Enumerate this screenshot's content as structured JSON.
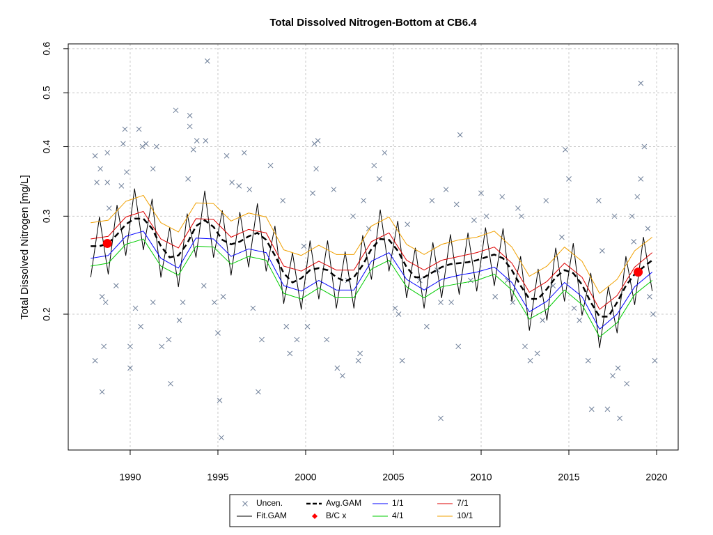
{
  "chart_data": {
    "type": "line",
    "title": "Total Dissolved Nitrogen-Bottom at CB6.4",
    "ylabel": "Total Dissolved Nitrogen [mg/L]",
    "ylog": true,
    "grid": true,
    "xlim": [
      1986.47,
      2021.23
    ],
    "ylim": [
      0.114,
      0.612
    ],
    "xticks": [
      1990,
      1995,
      2000,
      2005,
      2010,
      2015,
      2020
    ],
    "yticks": [
      0.2,
      0.3,
      0.4,
      0.5,
      0.6
    ],
    "legend": "bottom",
    "x": [
      1987.75,
      1988.25,
      1988.75,
      1989.25,
      1989.75,
      1990.25,
      1990.75,
      1991.25,
      1991.75,
      1992.25,
      1992.75,
      1993.25,
      1993.75,
      1994.25,
      1994.75,
      1995.25,
      1995.75,
      1996.25,
      1996.75,
      1997.25,
      1997.75,
      1998.25,
      1998.75,
      1999.25,
      1999.75,
      2000.25,
      2000.75,
      2001.25,
      2001.75,
      2002.25,
      2002.75,
      2003.25,
      2003.75,
      2004.25,
      2004.75,
      2005.25,
      2005.75,
      2006.25,
      2006.75,
      2007.25,
      2007.75,
      2008.25,
      2008.75,
      2009.25,
      2009.75,
      2010.25,
      2010.75,
      2011.25,
      2011.75,
      2012.25,
      2012.75,
      2013.25,
      2013.75,
      2014.25,
      2014.75,
      2015.25,
      2015.75,
      2016.25,
      2016.75,
      2017.25,
      2017.75,
      2018.25,
      2018.75,
      2019.25,
      2019.75
    ],
    "series": [
      {
        "name": "Uncen.",
        "marker": "x",
        "color": "#6e7f99",
        "x": [
          1988.0,
          1988.1,
          1988.0,
          1988.3,
          1988.4,
          1988.5,
          1988.4,
          1988.6,
          1988.7,
          1988.7,
          1988.8,
          1989.2,
          1989.5,
          1989.7,
          1989.6,
          1989.8,
          1990.0,
          1990.0,
          1990.3,
          1990.5,
          1990.6,
          1990.7,
          1990.9,
          1991.3,
          1991.3,
          1991.5,
          1991.8,
          1992.2,
          1992.3,
          1992.6,
          1992.8,
          1993.0,
          1993.3,
          1993.4,
          1993.4,
          1993.6,
          1993.8,
          1994.2,
          1994.3,
          1994.4,
          1994.8,
          1995.0,
          1995.1,
          1995.2,
          1995.3,
          1995.5,
          1995.8,
          1996.2,
          1996.5,
          1996.8,
          1997.0,
          1997.3,
          1997.5,
          1998.0,
          1998.7,
          1998.9,
          1999.1,
          1999.5,
          1999.9,
          2000.1,
          2000.4,
          2000.5,
          2000.6,
          2000.7,
          2001.2,
          2001.6,
          2001.8,
          2002.1,
          2002.4,
          2002.7,
          2003.0,
          2003.1,
          2003.3,
          2003.6,
          2003.9,
          2004.2,
          2004.5,
          2005.1,
          2005.3,
          2005.5,
          2005.8,
          2006.5,
          2006.9,
          2007.2,
          2007.5,
          2007.7,
          2007.7,
          2008.0,
          2008.3,
          2008.6,
          2008.8,
          2008.7,
          2009.4,
          2009.6,
          2010.0,
          2010.3,
          2010.8,
          2011.2,
          2011.5,
          2011.8,
          2012.1,
          2012.3,
          2012.5,
          2012.8,
          2013.2,
          2013.5,
          2013.7,
          2014.1,
          2014.6,
          2014.8,
          2015.0,
          2015.3,
          2015.6,
          2016.1,
          2016.3,
          2016.7,
          2016.9,
          2017.2,
          2017.5,
          2017.6,
          2017.8,
          2017.9,
          2018.3,
          2018.6,
          2018.7,
          2018.9,
          2019.1,
          2019.1,
          2019.3,
          2019.5,
          2019.6,
          2019.8,
          2019.9
        ],
        "values": [
          0.385,
          0.345,
          0.165,
          0.365,
          0.145,
          0.175,
          0.215,
          0.21,
          0.39,
          0.345,
          0.31,
          0.225,
          0.34,
          0.43,
          0.405,
          0.36,
          0.175,
          0.16,
          0.205,
          0.43,
          0.19,
          0.4,
          0.405,
          0.365,
          0.21,
          0.4,
          0.175,
          0.18,
          0.15,
          0.465,
          0.195,
          0.21,
          0.35,
          0.435,
          0.455,
          0.395,
          0.41,
          0.225,
          0.41,
          0.57,
          0.21,
          0.185,
          0.14,
          0.12,
          0.215,
          0.385,
          0.345,
          0.34,
          0.39,
          0.335,
          0.205,
          0.145,
          0.18,
          0.37,
          0.32,
          0.19,
          0.17,
          0.18,
          0.265,
          0.19,
          0.33,
          0.405,
          0.365,
          0.41,
          0.18,
          0.335,
          0.16,
          0.155,
          0.23,
          0.3,
          0.165,
          0.17,
          0.32,
          0.285,
          0.37,
          0.35,
          0.39,
          0.205,
          0.2,
          0.165,
          0.29,
          0.23,
          0.19,
          0.32,
          0.24,
          0.21,
          0.13,
          0.335,
          0.21,
          0.315,
          0.42,
          0.175,
          0.23,
          0.295,
          0.33,
          0.3,
          0.215,
          0.325,
          0.23,
          0.21,
          0.31,
          0.3,
          0.175,
          0.165,
          0.17,
          0.195,
          0.32,
          0.225,
          0.275,
          0.395,
          0.35,
          0.205,
          0.195,
          0.165,
          0.135,
          0.32,
          0.26,
          0.135,
          0.155,
          0.3,
          0.16,
          0.13,
          0.15,
          0.3,
          0.27,
          0.325,
          0.35,
          0.52,
          0.4,
          0.285,
          0.215,
          0.2,
          0.165
        ]
      },
      {
        "name": "Fit.GAM",
        "marker": "line",
        "color": "#000000",
        "values": [
          0.233,
          0.299,
          0.236,
          0.314,
          0.255,
          0.336,
          0.261,
          0.322,
          0.233,
          0.286,
          0.224,
          0.303,
          0.253,
          0.333,
          0.253,
          0.307,
          0.235,
          0.305,
          0.243,
          0.316,
          0.239,
          0.288,
          0.209,
          0.258,
          0.204,
          0.271,
          0.213,
          0.271,
          0.205,
          0.259,
          0.205,
          0.277,
          0.231,
          0.308,
          0.239,
          0.294,
          0.214,
          0.263,
          0.205,
          0.269,
          0.214,
          0.278,
          0.217,
          0.28,
          0.22,
          0.286,
          0.225,
          0.285,
          0.211,
          0.254,
          0.187,
          0.241,
          0.195,
          0.263,
          0.211,
          0.268,
          0.199,
          0.237,
          0.174,
          0.224,
          0.185,
          0.254,
          0.208,
          0.275,
          0.22
        ]
      },
      {
        "name": "Avg.GAM",
        "marker": "dash",
        "color": "#000000",
        "values": [
          0.265,
          0.265,
          0.268,
          0.278,
          0.29,
          0.297,
          0.297,
          0.285,
          0.265,
          0.253,
          0.255,
          0.268,
          0.288,
          0.295,
          0.287,
          0.272,
          0.267,
          0.27,
          0.276,
          0.28,
          0.272,
          0.255,
          0.237,
          0.228,
          0.232,
          0.24,
          0.242,
          0.24,
          0.233,
          0.229,
          0.233,
          0.245,
          0.262,
          0.273,
          0.272,
          0.26,
          0.243,
          0.233,
          0.233,
          0.238,
          0.243,
          0.246,
          0.247,
          0.248,
          0.25,
          0.253,
          0.256,
          0.252,
          0.24,
          0.225,
          0.213,
          0.213,
          0.222,
          0.233,
          0.24,
          0.237,
          0.226,
          0.21,
          0.198,
          0.198,
          0.21,
          0.225,
          0.236,
          0.243,
          0.25
        ]
      },
      {
        "name": "B/C x",
        "marker": "dot",
        "color": "#ff0000",
        "x": [
          1988.7,
          2018.95
        ],
        "values": [
          0.268,
          0.238
        ]
      },
      {
        "name": "1/1",
        "marker": "line",
        "color": "#0000ff",
        "x": [
          1987.75,
          1988.75,
          1989.75,
          1990.75,
          1991.75,
          1992.75,
          1993.75,
          1994.75,
          1995.75,
          1996.75,
          1997.75,
          1998.75,
          1999.75,
          2000.75,
          2001.75,
          2002.75,
          2003.75,
          2004.75,
          2005.75,
          2006.75,
          2007.75,
          2008.75,
          2009.75,
          2010.75,
          2011.75,
          2012.75,
          2013.75,
          2014.75,
          2015.75,
          2016.75,
          2017.75,
          2018.75,
          2019.75
        ],
        "values": [
          0.252,
          0.255,
          0.276,
          0.282,
          0.252,
          0.242,
          0.274,
          0.273,
          0.254,
          0.262,
          0.258,
          0.225,
          0.22,
          0.23,
          0.221,
          0.221,
          0.249,
          0.258,
          0.231,
          0.221,
          0.231,
          0.235,
          0.238,
          0.243,
          0.228,
          0.202,
          0.211,
          0.228,
          0.215,
          0.188,
          0.2,
          0.224,
          0.238
        ]
      },
      {
        "name": "4/1",
        "marker": "line",
        "color": "#00cc00",
        "x": [
          1987.75,
          1988.75,
          1989.75,
          1990.75,
          1991.75,
          1992.75,
          1993.75,
          1994.75,
          1995.75,
          1996.75,
          1997.75,
          1998.75,
          1999.75,
          2000.75,
          2001.75,
          2002.75,
          2003.75,
          2004.75,
          2005.75,
          2006.75,
          2007.75,
          2008.75,
          2009.75,
          2010.75,
          2011.75,
          2012.75,
          2013.75,
          2014.75,
          2015.75,
          2016.75,
          2017.75,
          2018.75,
          2019.75
        ],
        "values": [
          0.244,
          0.247,
          0.267,
          0.273,
          0.244,
          0.235,
          0.265,
          0.264,
          0.246,
          0.254,
          0.25,
          0.218,
          0.213,
          0.223,
          0.214,
          0.214,
          0.241,
          0.25,
          0.224,
          0.214,
          0.224,
          0.227,
          0.23,
          0.236,
          0.221,
          0.196,
          0.204,
          0.221,
          0.208,
          0.182,
          0.193,
          0.217,
          0.23
        ]
      },
      {
        "name": "7/1",
        "marker": "line",
        "color": "#dd0000",
        "x": [
          1987.75,
          1988.75,
          1989.75,
          1990.75,
          1991.75,
          1992.75,
          1993.75,
          1994.75,
          1995.75,
          1996.75,
          1997.75,
          1998.75,
          1999.75,
          2000.75,
          2001.75,
          2002.75,
          2003.75,
          2004.75,
          2005.75,
          2006.75,
          2007.75,
          2008.75,
          2009.75,
          2010.75,
          2011.75,
          2012.75,
          2013.75,
          2014.75,
          2015.75,
          2016.75,
          2017.75,
          2018.75,
          2019.75
        ],
        "values": [
          0.273,
          0.276,
          0.299,
          0.306,
          0.273,
          0.263,
          0.297,
          0.296,
          0.275,
          0.284,
          0.28,
          0.244,
          0.239,
          0.249,
          0.24,
          0.24,
          0.27,
          0.28,
          0.25,
          0.24,
          0.25,
          0.254,
          0.258,
          0.264,
          0.247,
          0.219,
          0.229,
          0.247,
          0.233,
          0.204,
          0.216,
          0.243,
          0.258
        ]
      },
      {
        "name": "10/1",
        "marker": "line",
        "color": "#f0a000",
        "x": [
          1987.75,
          1988.75,
          1989.75,
          1990.75,
          1991.75,
          1992.75,
          1993.75,
          1994.75,
          1995.75,
          1996.75,
          1997.75,
          1998.75,
          1999.75,
          2000.75,
          2001.75,
          2002.75,
          2003.75,
          2004.75,
          2005.75,
          2006.75,
          2007.75,
          2008.75,
          2009.75,
          2010.75,
          2011.75,
          2012.75,
          2013.75,
          2014.75,
          2015.75,
          2016.75,
          2017.75,
          2018.75,
          2019.75
        ],
        "values": [
          0.292,
          0.295,
          0.319,
          0.327,
          0.292,
          0.281,
          0.317,
          0.316,
          0.294,
          0.304,
          0.299,
          0.261,
          0.255,
          0.266,
          0.256,
          0.256,
          0.288,
          0.299,
          0.267,
          0.256,
          0.267,
          0.272,
          0.275,
          0.282,
          0.264,
          0.234,
          0.244,
          0.264,
          0.249,
          0.218,
          0.231,
          0.26,
          0.275
        ]
      }
    ]
  }
}
